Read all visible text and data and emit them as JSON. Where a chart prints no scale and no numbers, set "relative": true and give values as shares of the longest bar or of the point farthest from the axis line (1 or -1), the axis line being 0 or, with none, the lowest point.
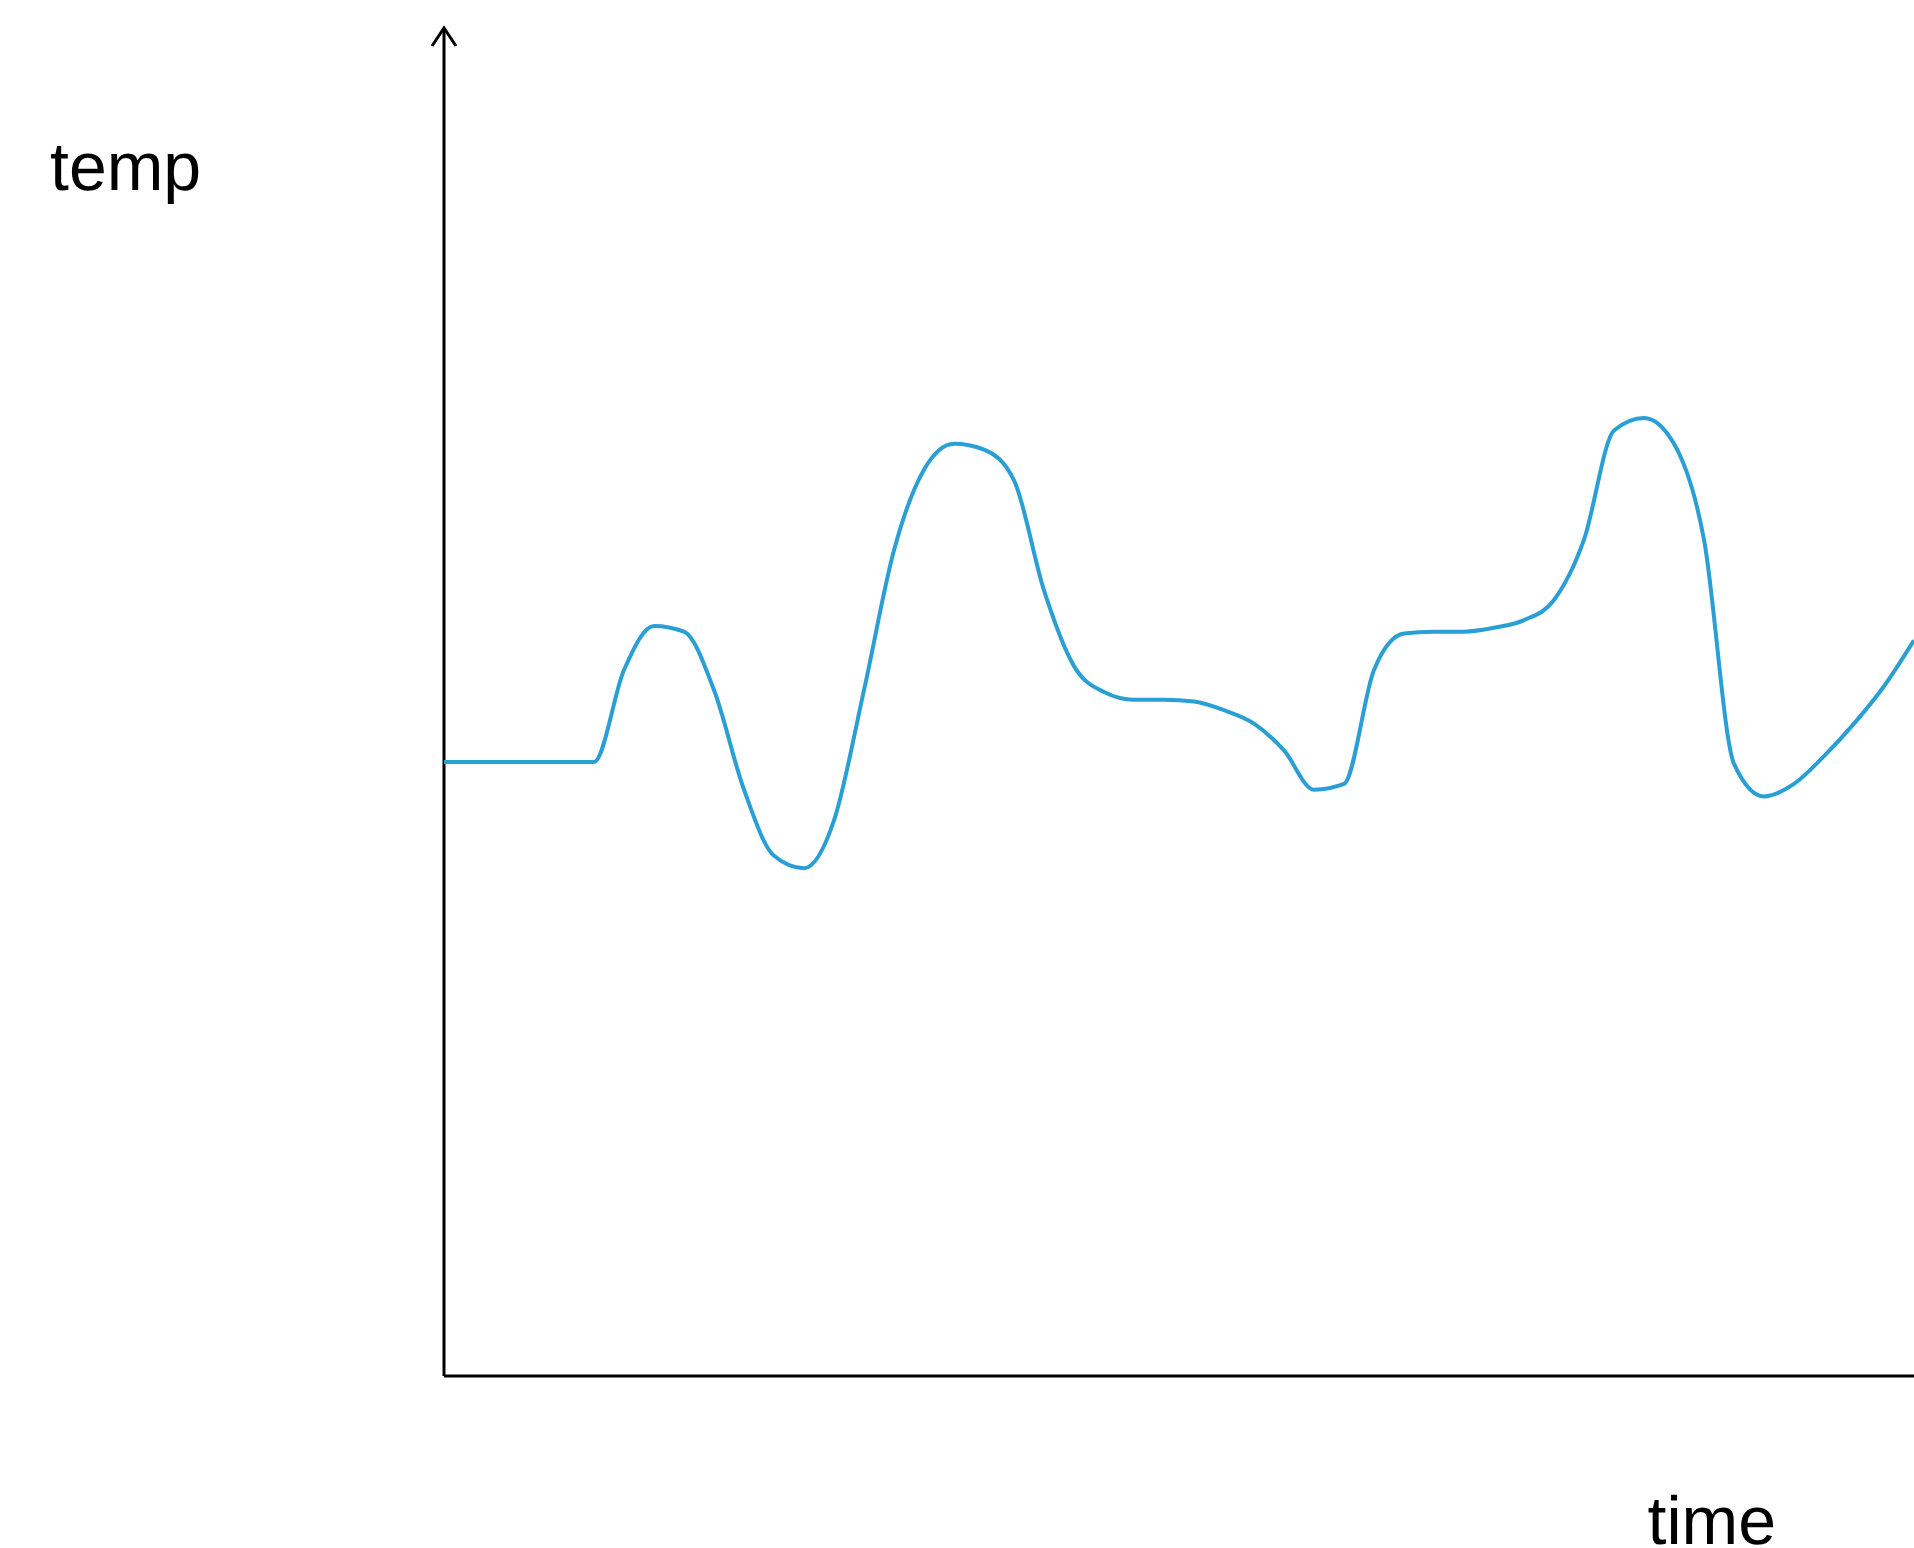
{
  "chart_data": {
    "type": "line",
    "xlabel": "time",
    "ylabel": "temp",
    "relative": true,
    "marker": "none",
    "line_style": "solid",
    "categories": [
      null,
      null,
      null,
      null,
      null,
      null,
      null,
      null,
      null,
      null,
      null,
      null,
      null,
      null,
      null,
      null,
      null,
      null,
      null,
      null,
      null,
      null,
      null,
      null,
      null,
      null,
      null,
      null,
      null,
      null,
      null,
      null,
      null,
      null,
      null,
      null,
      null,
      null,
      null,
      null,
      null,
      null,
      null,
      null,
      null,
      null,
      null,
      null,
      null,
      null
    ],
    "series": [
      {
        "color": "#2a9fd6",
        "values": [
          0.641,
          0.641,
          0.641,
          0.641,
          0.641,
          0.641,
          0.737,
          0.783,
          0.777,
          0.716,
          0.612,
          0.543,
          0.53,
          0.58,
          0.716,
          0.862,
          0.946,
          0.973,
          0.967,
          0.935,
          0.82,
          0.741,
          0.714,
          0.706,
          0.706,
          0.704,
          0.695,
          0.681,
          0.653,
          0.612,
          0.618,
          0.737,
          0.775,
          0.777,
          0.777,
          0.781,
          0.789,
          0.81,
          0.873,
          0.987,
          1,
          0.973,
          0.873,
          0.639,
          0.605,
          0.618,
          0.647,
          0.681,
          0.72,
          0.768
        ]
      }
    ]
  }
}
